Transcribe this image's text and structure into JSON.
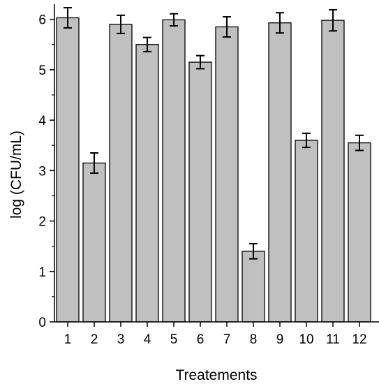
{
  "chart_data": {
    "type": "bar",
    "title": "",
    "xlabel": "Treatements",
    "ylabel": "log (CFU/mL)",
    "categories": [
      "1",
      "2",
      "3",
      "4",
      "5",
      "6",
      "7",
      "8",
      "9",
      "10",
      "11",
      "12"
    ],
    "values": [
      6.03,
      3.15,
      5.9,
      5.5,
      5.99,
      5.15,
      5.85,
      1.4,
      5.93,
      3.6,
      5.98,
      3.55
    ],
    "errors": [
      0.2,
      0.2,
      0.18,
      0.14,
      0.12,
      0.13,
      0.2,
      0.15,
      0.2,
      0.14,
      0.21,
      0.15
    ],
    "ylim": [
      0,
      6.3
    ],
    "yticks": [
      0,
      1,
      2,
      3,
      4,
      5,
      6
    ],
    "grid": false,
    "legend": "none",
    "colors": {
      "bar_fill": "#c0c0c0",
      "bar_stroke": "#000000",
      "axis": "#000000"
    }
  }
}
